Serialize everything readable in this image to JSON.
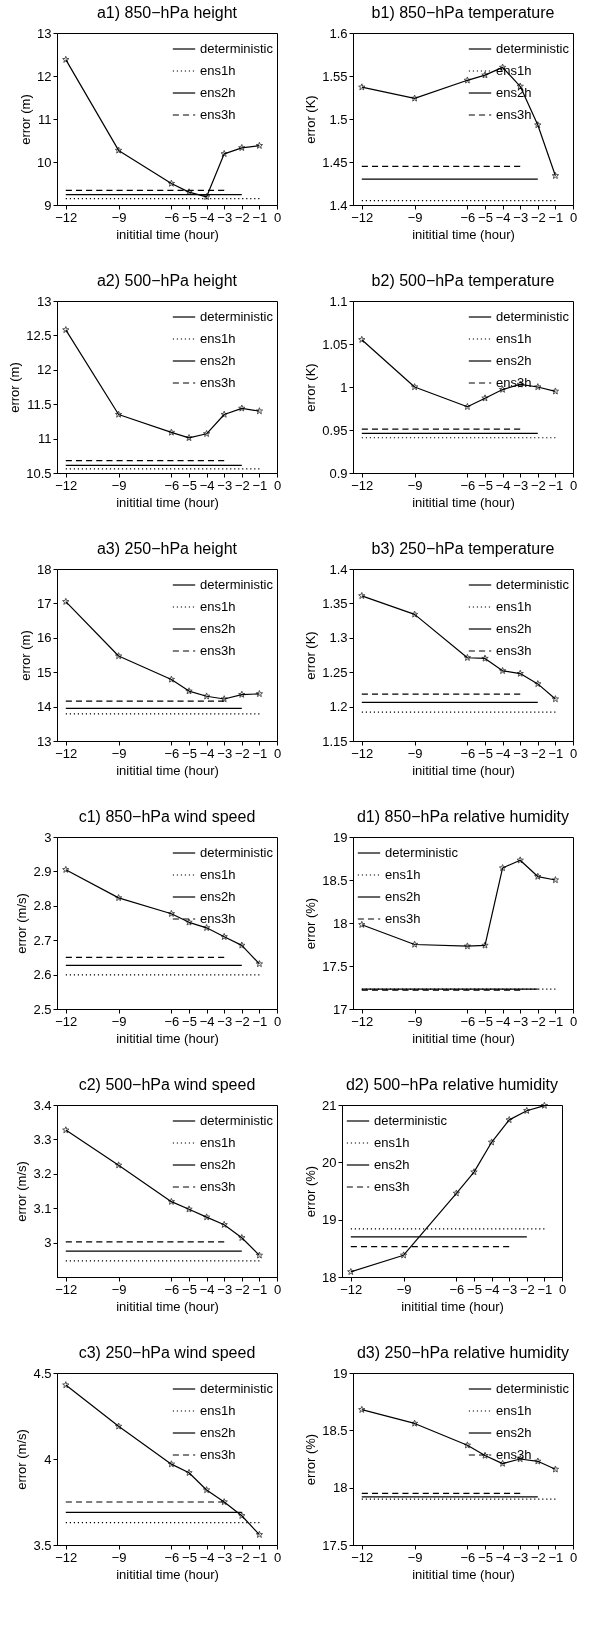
{
  "chart_data": [
    {
      "type": "line",
      "title": "a1) 850−hPa height",
      "xlabel": "inititial time (hour)",
      "ylabel": "error (m)",
      "x": [
        -12,
        -9,
        -6,
        -5,
        -4,
        -3,
        -2,
        -1
      ],
      "xlim": [
        -12.5,
        0
      ],
      "xticks": [
        {
          "value": -12,
          "label": "−12"
        },
        {
          "value": -9,
          "label": "−9"
        },
        {
          "value": -6,
          "label": "−6"
        },
        {
          "value": -5,
          "label": "−5"
        },
        {
          "value": -4,
          "label": "−4"
        },
        {
          "value": -3,
          "label": "−3"
        },
        {
          "value": -2,
          "label": "−2"
        },
        {
          "value": -1,
          "label": "−1"
        },
        {
          "value": 0,
          "label": "0"
        }
      ],
      "ylim": [
        9,
        13
      ],
      "yticks": [
        9,
        10,
        11,
        12,
        13
      ],
      "legend": "top right",
      "series": [
        {
          "name": "deterministic",
          "color": "#000000",
          "marker": "star",
          "line_style": "solid",
          "values": [
            12.38,
            10.27,
            9.5,
            9.3,
            9.19,
            10.19,
            10.33,
            10.38
          ]
        },
        {
          "name": "ens1h",
          "color": "#000000",
          "line_style": "dotted",
          "x": [
            -12,
            -1
          ],
          "values": [
            9.15,
            9.15
          ]
        },
        {
          "name": "ens2h",
          "color": "#000000",
          "line_style": "solid",
          "x": [
            -12,
            -2
          ],
          "values": [
            9.24,
            9.24
          ]
        },
        {
          "name": "ens3h",
          "color": "#000000",
          "line_style": "dashed",
          "x": [
            -12,
            -3
          ],
          "values": [
            9.34,
            9.34
          ]
        }
      ]
    },
    {
      "type": "line",
      "title": "b1) 850−hPa temperature",
      "xlabel": "inititial time (hour)",
      "ylabel": "error (K)",
      "x": [
        -12,
        -9,
        -6,
        -5,
        -4,
        -3,
        -2,
        -1
      ],
      "xlim": [
        -12.5,
        0
      ],
      "xticks": [
        {
          "value": -12,
          "label": "−12"
        },
        {
          "value": -9,
          "label": "−9"
        },
        {
          "value": -6,
          "label": "−6"
        },
        {
          "value": -5,
          "label": "−5"
        },
        {
          "value": -4,
          "label": "−4"
        },
        {
          "value": -3,
          "label": "−3"
        },
        {
          "value": -2,
          "label": "−2"
        },
        {
          "value": -1,
          "label": "−1"
        },
        {
          "value": 0,
          "label": "0"
        }
      ],
      "ylim": [
        1.4,
        1.6
      ],
      "yticks": [
        1.4,
        1.45,
        1.5,
        1.55,
        1.6
      ],
      "legend": "top right",
      "series": [
        {
          "name": "deterministic",
          "color": "#000000",
          "marker": "star",
          "line_style": "solid",
          "values": [
            1.537,
            1.524,
            1.545,
            1.551,
            1.56,
            1.538,
            1.493,
            1.434
          ]
        },
        {
          "name": "ens1h",
          "color": "#000000",
          "line_style": "dotted",
          "x": [
            -12,
            -1
          ],
          "values": [
            1.405,
            1.405
          ]
        },
        {
          "name": "ens2h",
          "color": "#000000",
          "line_style": "solid",
          "x": [
            -12,
            -2
          ],
          "values": [
            1.43,
            1.43
          ]
        },
        {
          "name": "ens3h",
          "color": "#000000",
          "line_style": "dashed",
          "x": [
            -12,
            -3
          ],
          "values": [
            1.445,
            1.445
          ]
        }
      ]
    },
    {
      "type": "line",
      "title": "a2) 500−hPa height",
      "xlabel": "inititial time (hour)",
      "ylabel": "error (m)",
      "x": [
        -12,
        -9,
        -6,
        -5,
        -4,
        -3,
        -2,
        -1
      ],
      "xlim": [
        -12.5,
        0
      ],
      "xticks": [
        {
          "value": -12,
          "label": "−12"
        },
        {
          "value": -9,
          "label": "−9"
        },
        {
          "value": -6,
          "label": "−6"
        },
        {
          "value": -5,
          "label": "−5"
        },
        {
          "value": -4,
          "label": "−4"
        },
        {
          "value": -3,
          "label": "−3"
        },
        {
          "value": -2,
          "label": "−2"
        },
        {
          "value": -1,
          "label": "−1"
        },
        {
          "value": 0,
          "label": "0"
        }
      ],
      "ylim": [
        10.5,
        13
      ],
      "yticks": [
        10.5,
        11,
        11.5,
        12,
        12.5,
        13
      ],
      "legend": "top right",
      "series": [
        {
          "name": "deterministic",
          "color": "#000000",
          "marker": "star",
          "line_style": "solid",
          "values": [
            12.58,
            11.35,
            11.09,
            11.01,
            11.07,
            11.35,
            11.44,
            11.4
          ]
        },
        {
          "name": "ens1h",
          "color": "#000000",
          "line_style": "dotted",
          "x": [
            -12,
            -1
          ],
          "values": [
            10.56,
            10.56
          ]
        },
        {
          "name": "ens2h",
          "color": "#000000",
          "line_style": "solid",
          "x": [
            -12,
            -2
          ],
          "values": [
            10.61,
            10.61
          ]
        },
        {
          "name": "ens3h",
          "color": "#000000",
          "line_style": "dashed",
          "x": [
            -12,
            -3
          ],
          "values": [
            10.68,
            10.68
          ]
        }
      ]
    },
    {
      "type": "line",
      "title": "b2) 500−hPa temperature",
      "xlabel": "inititial time (hour)",
      "ylabel": "error (K)",
      "x": [
        -12,
        -9,
        -6,
        -5,
        -4,
        -3,
        -2,
        -1
      ],
      "xlim": [
        -12.5,
        0
      ],
      "xticks": [
        {
          "value": -12,
          "label": "−12"
        },
        {
          "value": -9,
          "label": "−9"
        },
        {
          "value": -6,
          "label": "−6"
        },
        {
          "value": -5,
          "label": "−5"
        },
        {
          "value": -4,
          "label": "−4"
        },
        {
          "value": -3,
          "label": "−3"
        },
        {
          "value": -2,
          "label": "−2"
        },
        {
          "value": -1,
          "label": "−1"
        },
        {
          "value": 0,
          "label": "0"
        }
      ],
      "ylim": [
        0.9,
        1.1
      ],
      "yticks": [
        0.9,
        0.95,
        1,
        1.05,
        1.1
      ],
      "legend": "top right",
      "series": [
        {
          "name": "deterministic",
          "color": "#000000",
          "marker": "star",
          "line_style": "solid",
          "values": [
            1.055,
            1.0,
            0.977,
            0.987,
            0.997,
            1.003,
            1.0,
            0.995
          ]
        },
        {
          "name": "ens1h",
          "color": "#000000",
          "line_style": "dotted",
          "x": [
            -12,
            -1
          ],
          "values": [
            0.941,
            0.941
          ]
        },
        {
          "name": "ens2h",
          "color": "#000000",
          "line_style": "solid",
          "x": [
            -12,
            -2
          ],
          "values": [
            0.946,
            0.946
          ]
        },
        {
          "name": "ens3h",
          "color": "#000000",
          "line_style": "dashed",
          "x": [
            -12,
            -3
          ],
          "values": [
            0.951,
            0.951
          ]
        }
      ]
    },
    {
      "type": "line",
      "title": "a3) 250−hPa height",
      "xlabel": "inititial time (hour)",
      "ylabel": "error (m)",
      "x": [
        -12,
        -9,
        -6,
        -5,
        -4,
        -3,
        -2,
        -1
      ],
      "xlim": [
        -12.5,
        0
      ],
      "xticks": [
        {
          "value": -12,
          "label": "−12"
        },
        {
          "value": -9,
          "label": "−9"
        },
        {
          "value": -6,
          "label": "−6"
        },
        {
          "value": -5,
          "label": "−5"
        },
        {
          "value": -4,
          "label": "−4"
        },
        {
          "value": -3,
          "label": "−3"
        },
        {
          "value": -2,
          "label": "−2"
        },
        {
          "value": -1,
          "label": "−1"
        },
        {
          "value": 0,
          "label": "0"
        }
      ],
      "ylim": [
        13,
        18
      ],
      "yticks": [
        13,
        14,
        15,
        16,
        17,
        18
      ],
      "legend": "top right",
      "series": [
        {
          "name": "deterministic",
          "color": "#000000",
          "marker": "star",
          "line_style": "solid",
          "values": [
            17.05,
            15.47,
            14.79,
            14.45,
            14.3,
            14.22,
            14.35,
            14.37
          ]
        },
        {
          "name": "ens1h",
          "color": "#000000",
          "line_style": "dotted",
          "x": [
            -12,
            -1
          ],
          "values": [
            13.79,
            13.79
          ]
        },
        {
          "name": "ens2h",
          "color": "#000000",
          "line_style": "solid",
          "x": [
            -12,
            -2
          ],
          "values": [
            13.95,
            13.95
          ]
        },
        {
          "name": "ens3h",
          "color": "#000000",
          "line_style": "dashed",
          "x": [
            -12,
            -3
          ],
          "values": [
            14.16,
            14.16
          ]
        }
      ]
    },
    {
      "type": "line",
      "title": "b3) 250−hPa temperature",
      "xlabel": "inititial time (hour)",
      "ylabel": "error (K)",
      "x": [
        -12,
        -9,
        -6,
        -5,
        -4,
        -3,
        -2,
        -1
      ],
      "xlim": [
        -12.5,
        0
      ],
      "xticks": [
        {
          "value": -12,
          "label": "−12"
        },
        {
          "value": -9,
          "label": "−9"
        },
        {
          "value": -6,
          "label": "−6"
        },
        {
          "value": -5,
          "label": "−5"
        },
        {
          "value": -4,
          "label": "−4"
        },
        {
          "value": -3,
          "label": "−3"
        },
        {
          "value": -2,
          "label": "−2"
        },
        {
          "value": -1,
          "label": "−1"
        },
        {
          "value": 0,
          "label": "0"
        }
      ],
      "ylim": [
        1.15,
        1.4
      ],
      "yticks": [
        1.15,
        1.2,
        1.25,
        1.3,
        1.35,
        1.4
      ],
      "legend": "top right",
      "series": [
        {
          "name": "deterministic",
          "color": "#000000",
          "marker": "star",
          "line_style": "solid",
          "values": [
            1.361,
            1.334,
            1.271,
            1.27,
            1.252,
            1.248,
            1.233,
            1.211
          ]
        },
        {
          "name": "ens1h",
          "color": "#000000",
          "line_style": "dotted",
          "x": [
            -12,
            -1
          ],
          "values": [
            1.192,
            1.192
          ]
        },
        {
          "name": "ens2h",
          "color": "#000000",
          "line_style": "solid",
          "x": [
            -12,
            -2
          ],
          "values": [
            1.206,
            1.206
          ]
        },
        {
          "name": "ens3h",
          "color": "#000000",
          "line_style": "dashed",
          "x": [
            -12,
            -3
          ],
          "values": [
            1.218,
            1.218
          ]
        }
      ]
    },
    {
      "type": "line",
      "title": "c1) 850−hPa wind speed",
      "xlabel": "inititial time (hour)",
      "ylabel": "error (m/s)",
      "x": [
        -12,
        -9,
        -6,
        -5,
        -4,
        -3,
        -2,
        -1
      ],
      "xlim": [
        -12.5,
        0
      ],
      "xticks": [
        {
          "value": -12,
          "label": "−12"
        },
        {
          "value": -9,
          "label": "−9"
        },
        {
          "value": -6,
          "label": "−6"
        },
        {
          "value": -5,
          "label": "−5"
        },
        {
          "value": -4,
          "label": "−4"
        },
        {
          "value": -3,
          "label": "−3"
        },
        {
          "value": -2,
          "label": "−2"
        },
        {
          "value": -1,
          "label": "−1"
        },
        {
          "value": 0,
          "label": "0"
        }
      ],
      "ylim": [
        2.5,
        3
      ],
      "yticks": [
        2.5,
        2.6,
        2.7,
        2.8,
        2.9,
        3
      ],
      "legend": "top right",
      "series": [
        {
          "name": "deterministic",
          "color": "#000000",
          "marker": "star",
          "line_style": "solid",
          "values": [
            2.905,
            2.823,
            2.777,
            2.752,
            2.736,
            2.71,
            2.685,
            2.631
          ]
        },
        {
          "name": "ens1h",
          "color": "#000000",
          "line_style": "dotted",
          "x": [
            -12,
            -1
          ],
          "values": [
            2.599,
            2.599
          ]
        },
        {
          "name": "ens2h",
          "color": "#000000",
          "line_style": "solid",
          "x": [
            -12,
            -2
          ],
          "values": [
            2.627,
            2.627
          ]
        },
        {
          "name": "ens3h",
          "color": "#000000",
          "line_style": "dashed",
          "x": [
            -12,
            -3
          ],
          "values": [
            2.65,
            2.65
          ]
        }
      ]
    },
    {
      "type": "line",
      "title": "d1) 850−hPa relative humidity",
      "xlabel": "inititial time (hour)",
      "ylabel": "error (%)",
      "x": [
        -12,
        -9,
        -6,
        -5,
        -4,
        -3,
        -2,
        -1
      ],
      "xlim": [
        -12.5,
        0
      ],
      "xticks": [
        {
          "value": -12,
          "label": "−12"
        },
        {
          "value": -9,
          "label": "−9"
        },
        {
          "value": -6,
          "label": "−6"
        },
        {
          "value": -5,
          "label": "−5"
        },
        {
          "value": -4,
          "label": "−4"
        },
        {
          "value": -3,
          "label": "−3"
        },
        {
          "value": -2,
          "label": "−2"
        },
        {
          "value": -1,
          "label": "−1"
        },
        {
          "value": 0,
          "label": "0"
        }
      ],
      "ylim": [
        17,
        19
      ],
      "yticks": [
        17,
        17.5,
        18,
        18.5,
        19
      ],
      "legend": "top left",
      "series": [
        {
          "name": "deterministic",
          "color": "#000000",
          "marker": "star",
          "line_style": "solid",
          "values": [
            17.98,
            17.75,
            17.73,
            17.74,
            18.64,
            18.73,
            18.54,
            18.5
          ]
        },
        {
          "name": "ens1h",
          "color": "#000000",
          "line_style": "dotted",
          "x": [
            -12,
            -1
          ],
          "values": [
            17.23,
            17.23
          ]
        },
        {
          "name": "ens2h",
          "color": "#000000",
          "line_style": "solid",
          "x": [
            -12,
            -2
          ],
          "values": [
            17.23,
            17.23
          ]
        },
        {
          "name": "ens3h",
          "color": "#000000",
          "line_style": "dashed",
          "x": [
            -12,
            -3
          ],
          "values": [
            17.22,
            17.22
          ]
        }
      ]
    },
    {
      "type": "line",
      "title": "c2) 500−hPa wind speed",
      "xlabel": "inititial time (hour)",
      "ylabel": "error (m/s)",
      "x": [
        -12,
        -9,
        -6,
        -5,
        -4,
        -3,
        -2,
        -1
      ],
      "xlim": [
        -12.5,
        0
      ],
      "xticks": [
        {
          "value": -12,
          "label": "−12"
        },
        {
          "value": -9,
          "label": "−9"
        },
        {
          "value": -6,
          "label": "−6"
        },
        {
          "value": -5,
          "label": "−5"
        },
        {
          "value": -4,
          "label": "−4"
        },
        {
          "value": -3,
          "label": "−3"
        },
        {
          "value": -2,
          "label": "−2"
        },
        {
          "value": -1,
          "label": "−1"
        },
        {
          "value": 0,
          "label": "0"
        }
      ],
      "ylim": [
        2.9,
        3.4
      ],
      "yticks": [
        3,
        3.1,
        3.2,
        3.3,
        3.4
      ],
      "legend": "top right",
      "series": [
        {
          "name": "deterministic",
          "color": "#000000",
          "marker": "star",
          "line_style": "solid",
          "values": [
            3.327,
            3.225,
            3.119,
            3.097,
            3.074,
            3.052,
            3.014,
            2.963
          ]
        },
        {
          "name": "ens1h",
          "color": "#000000",
          "line_style": "dotted",
          "x": [
            -12,
            -1
          ],
          "values": [
            2.947,
            2.947
          ]
        },
        {
          "name": "ens2h",
          "color": "#000000",
          "line_style": "solid",
          "x": [
            -12,
            -2
          ],
          "values": [
            2.975,
            2.975
          ]
        },
        {
          "name": "ens3h",
          "color": "#000000",
          "line_style": "dashed",
          "x": [
            -12,
            -3
          ],
          "values": [
            3.002,
            3.002
          ]
        }
      ]
    },
    {
      "type": "line",
      "title": "d2) 500−hPa relative humidity",
      "xlabel": "inititial time (hour)",
      "ylabel": "error (%)",
      "x": [
        -12,
        -9,
        -6,
        -5,
        -4,
        -3,
        -2,
        -1
      ],
      "xlim": [
        -12.5,
        0
      ],
      "xticks": [
        {
          "value": -12,
          "label": "−12"
        },
        {
          "value": -9,
          "label": "−9"
        },
        {
          "value": -6,
          "label": "−6"
        },
        {
          "value": -5,
          "label": "−5"
        },
        {
          "value": -4,
          "label": "−4"
        },
        {
          "value": -3,
          "label": "−3"
        },
        {
          "value": -2,
          "label": "−2"
        },
        {
          "value": -1,
          "label": "−1"
        },
        {
          "value": 0,
          "label": "0"
        }
      ],
      "ylim": [
        18,
        21
      ],
      "yticks": [
        18,
        19,
        20,
        21
      ],
      "legend": "top left",
      "series": [
        {
          "name": "deterministic",
          "color": "#000000",
          "marker": "star",
          "line_style": "solid",
          "values": [
            18.09,
            18.38,
            19.46,
            19.83,
            20.35,
            20.74,
            20.9,
            20.99
          ]
        },
        {
          "name": "ens1h",
          "color": "#000000",
          "line_style": "dotted",
          "x": [
            -12,
            -1
          ],
          "values": [
            18.84,
            18.84
          ]
        },
        {
          "name": "ens2h",
          "color": "#000000",
          "line_style": "solid",
          "x": [
            -12,
            -2
          ],
          "values": [
            18.7,
            18.7
          ]
        },
        {
          "name": "ens3h",
          "color": "#000000",
          "line_style": "dashed",
          "x": [
            -12,
            -3
          ],
          "values": [
            18.53,
            18.53
          ]
        }
      ]
    },
    {
      "type": "line",
      "title": "c3) 250−hPa wind speed",
      "xlabel": "inititial time (hour)",
      "ylabel": "error (m/s)",
      "x": [
        -12,
        -9,
        -6,
        -5,
        -4,
        -3,
        -2,
        -1
      ],
      "xlim": [
        -12.5,
        0
      ],
      "xticks": [
        {
          "value": -12,
          "label": "−12"
        },
        {
          "value": -9,
          "label": "−9"
        },
        {
          "value": -6,
          "label": "−6"
        },
        {
          "value": -5,
          "label": "−5"
        },
        {
          "value": -4,
          "label": "−4"
        },
        {
          "value": -3,
          "label": "−3"
        },
        {
          "value": -2,
          "label": "−2"
        },
        {
          "value": -1,
          "label": "−1"
        },
        {
          "value": 0,
          "label": "0"
        }
      ],
      "ylim": [
        3.5,
        4.5
      ],
      "yticks": [
        3.5,
        4,
        4.5
      ],
      "legend": "top right",
      "series": [
        {
          "name": "deterministic",
          "color": "#000000",
          "marker": "star",
          "line_style": "solid",
          "values": [
            4.43,
            4.19,
            3.97,
            3.92,
            3.82,
            3.75,
            3.67,
            3.56
          ]
        },
        {
          "name": "ens1h",
          "color": "#000000",
          "line_style": "dotted",
          "x": [
            -12,
            -1
          ],
          "values": [
            3.63,
            3.63
          ]
        },
        {
          "name": "ens2h",
          "color": "#000000",
          "line_style": "solid",
          "x": [
            -12,
            -2
          ],
          "values": [
            3.69,
            3.69
          ]
        },
        {
          "name": "ens3h",
          "color": "#000000",
          "line_style": "dashed",
          "x": [
            -12,
            -3
          ],
          "values": [
            3.75,
            3.75
          ]
        }
      ]
    },
    {
      "type": "line",
      "title": "d3) 250−hPa relative humidity",
      "xlabel": "inititial time (hour)",
      "ylabel": "error (%)",
      "x": [
        -12,
        -9,
        -6,
        -5,
        -4,
        -3,
        -2,
        -1
      ],
      "xlim": [
        -12.5,
        0
      ],
      "xticks": [
        {
          "value": -12,
          "label": "−12"
        },
        {
          "value": -9,
          "label": "−9"
        },
        {
          "value": -6,
          "label": "−6"
        },
        {
          "value": -5,
          "label": "−5"
        },
        {
          "value": -4,
          "label": "−4"
        },
        {
          "value": -3,
          "label": "−3"
        },
        {
          "value": -2,
          "label": "−2"
        },
        {
          "value": -1,
          "label": "−1"
        },
        {
          "value": 0,
          "label": "0"
        }
      ],
      "ylim": [
        17.5,
        19
      ],
      "yticks": [
        17.5,
        18,
        18.5,
        19
      ],
      "legend": "top right",
      "series": [
        {
          "name": "deterministic",
          "color": "#000000",
          "marker": "star",
          "line_style": "solid",
          "values": [
            18.68,
            18.56,
            18.37,
            18.28,
            18.21,
            18.25,
            18.23,
            18.16
          ]
        },
        {
          "name": "ens1h",
          "color": "#000000",
          "line_style": "dotted",
          "x": [
            -12,
            -1
          ],
          "values": [
            17.9,
            17.9
          ]
        },
        {
          "name": "ens2h",
          "color": "#000000",
          "line_style": "solid",
          "x": [
            -12,
            -2
          ],
          "values": [
            17.92,
            17.92
          ]
        },
        {
          "name": "ens3h",
          "color": "#000000",
          "line_style": "dashed",
          "x": [
            -12,
            -3
          ],
          "values": [
            17.95,
            17.95
          ]
        }
      ]
    }
  ]
}
